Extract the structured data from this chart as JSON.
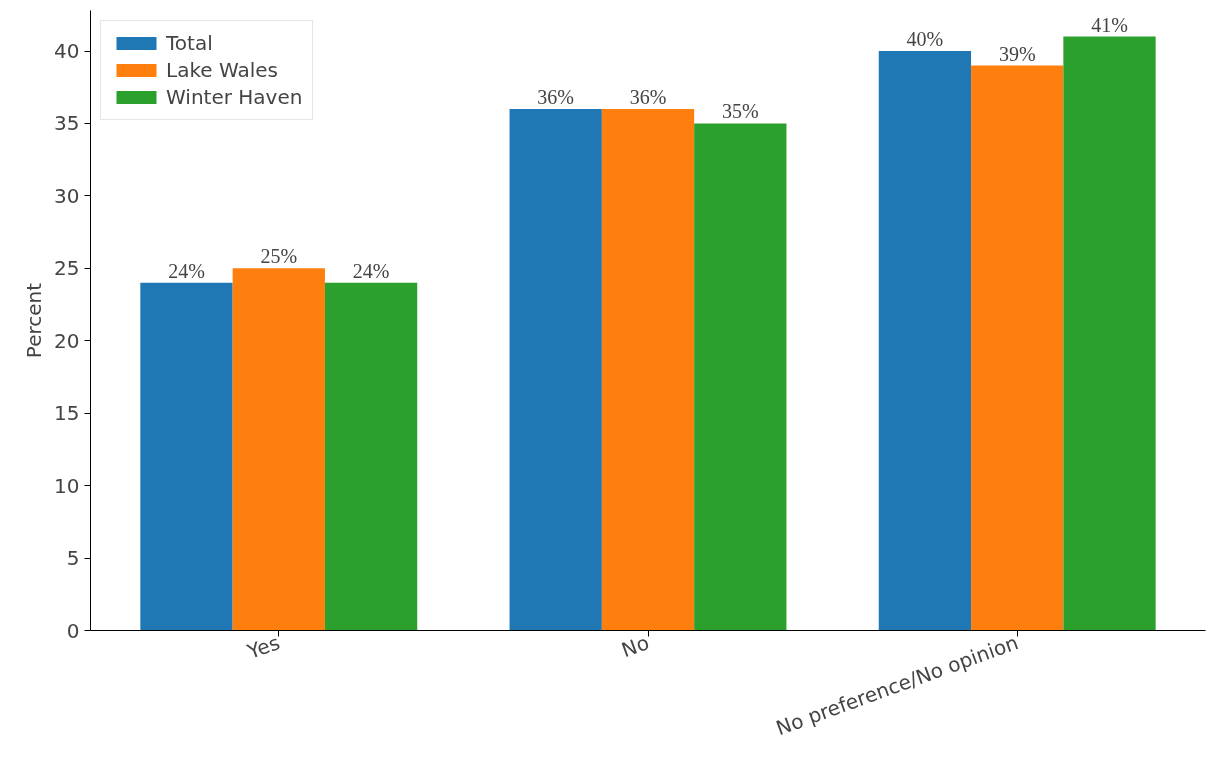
{
  "chart_data": {
    "type": "bar",
    "ylabel": "Percent",
    "categories": [
      "Yes",
      "No",
      "No preference/No opinion"
    ],
    "series": [
      {
        "name": "Total",
        "color": "#1f77b4",
        "values": [
          24,
          36,
          40
        ],
        "value_labels": [
          "24%",
          "36%",
          "40%"
        ]
      },
      {
        "name": "Lake Wales",
        "color": "#ff7f0e",
        "values": [
          25,
          36,
          39
        ],
        "value_labels": [
          "25%",
          "36%",
          "39%"
        ]
      },
      {
        "name": "Winter Haven",
        "color": "#2ca02c",
        "values": [
          24,
          35,
          41
        ],
        "value_labels": [
          "24%",
          "35%",
          "41%"
        ]
      }
    ],
    "ylim": [
      0,
      42.8
    ],
    "yticks": [
      0,
      5,
      10,
      15,
      20,
      25,
      30,
      35,
      40
    ],
    "grid": false,
    "legend": "top left"
  }
}
